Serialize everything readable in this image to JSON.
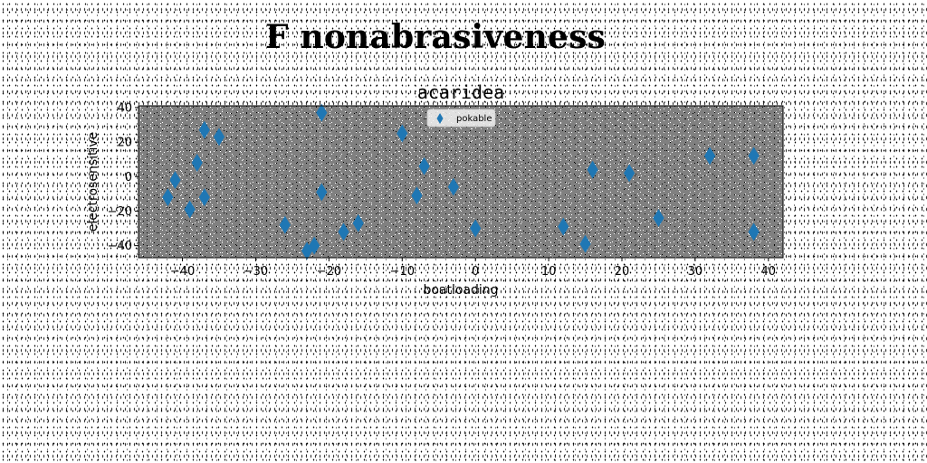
{
  "figure": {
    "suptitle": "F nonabrasiveness"
  },
  "chart_data": {
    "type": "scatter",
    "title": "acaridea",
    "xlabel": "boatloading",
    "ylabel": "electrosensitive",
    "xlim": [
      -46,
      42
    ],
    "ylim": [
      -47,
      41
    ],
    "xticks": [
      -40,
      -30,
      -20,
      -10,
      0,
      10,
      20,
      30,
      40
    ],
    "yticks": [
      -40,
      -20,
      0,
      20,
      40
    ],
    "grid": false,
    "plot_background": "#808080",
    "marker": "thin-diamond",
    "legend": {
      "position": "top-center"
    },
    "series": [
      {
        "name": "pokable",
        "color": "#1f77b4",
        "points": [
          [
            -42,
            -12
          ],
          [
            -41,
            -2
          ],
          [
            -39,
            -19
          ],
          [
            -38,
            8
          ],
          [
            -37,
            27
          ],
          [
            -37,
            -12
          ],
          [
            -35,
            23
          ],
          [
            -26,
            -28
          ],
          [
            -23,
            -43
          ],
          [
            -22,
            -40
          ],
          [
            -21,
            37
          ],
          [
            -21,
            -9
          ],
          [
            -18,
            -32
          ],
          [
            -16,
            -27
          ],
          [
            -10,
            25
          ],
          [
            -8,
            -11
          ],
          [
            -7,
            6
          ],
          [
            -3,
            -6
          ],
          [
            0,
            -30
          ],
          [
            12,
            -29
          ],
          [
            15,
            -39
          ],
          [
            16,
            4
          ],
          [
            21,
            2
          ],
          [
            25,
            -24
          ],
          [
            32,
            12
          ],
          [
            38,
            12
          ],
          [
            38,
            -32
          ]
        ]
      }
    ]
  }
}
